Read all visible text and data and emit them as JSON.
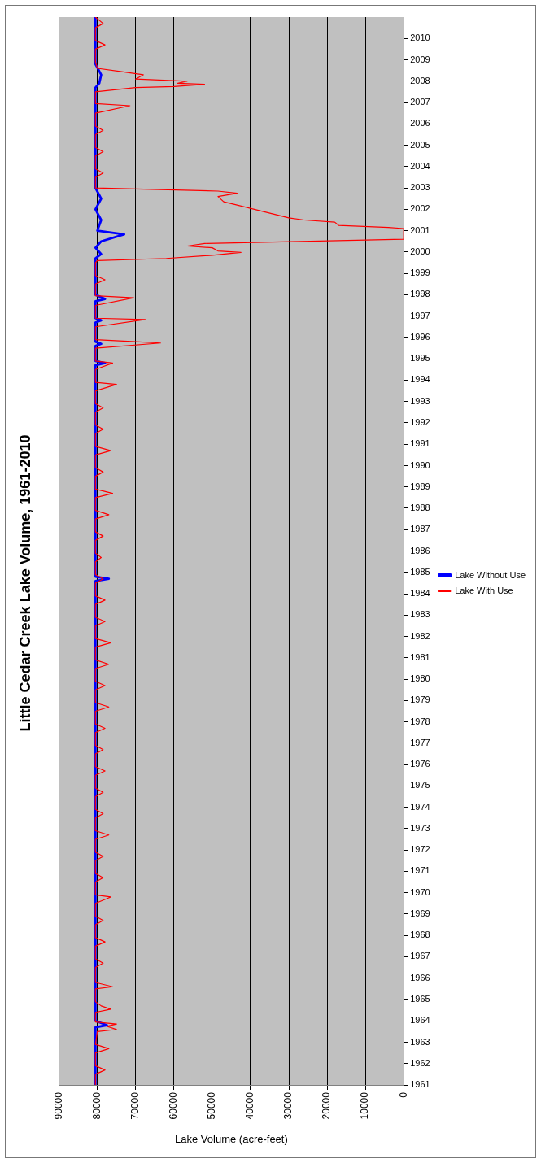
{
  "chart_data": {
    "type": "line",
    "title": "Little Cedar Creek Lake Volume, 1961-2010",
    "xlabel": "Lake Volume (acre-feet)",
    "xlim": [
      90000,
      0
    ],
    "xticks": [
      90000,
      80000,
      70000,
      60000,
      50000,
      40000,
      30000,
      20000,
      10000,
      0
    ],
    "ylim": [
      1961,
      2011
    ],
    "yticks": [
      1961,
      1962,
      1963,
      1964,
      1965,
      1966,
      1967,
      1968,
      1969,
      1970,
      1971,
      1972,
      1973,
      1974,
      1975,
      1976,
      1977,
      1978,
      1979,
      1980,
      1981,
      1982,
      1983,
      1984,
      1985,
      1986,
      1987,
      1988,
      1989,
      1990,
      1991,
      1992,
      1993,
      1994,
      1995,
      1996,
      1997,
      1998,
      1999,
      2000,
      2001,
      2002,
      2003,
      2004,
      2005,
      2006,
      2007,
      2008,
      2009,
      2010
    ],
    "grid": "x",
    "legend": "right",
    "marker": "none",
    "line_style": "solid",
    "series": [
      {
        "name": "Lake Without Use",
        "color": "#0000ff",
        "values": [
          1961,
          1963.7,
          1963.8,
          1964,
          1984.6,
          1984.7,
          1984.8,
          1994.7,
          1994.8,
          1994.9,
          1995.6,
          1995.7,
          1995.8,
          1996.7,
          1996.8,
          1996.9,
          1997.7,
          1997.8,
          1998,
          1999.7,
          1999.9,
          2000.2,
          2000.5,
          2000.83,
          2001,
          2001.5,
          2002,
          2002.5,
          2003,
          2007.7,
          2007.9,
          2008.3,
          2008.8,
          2011
        ],
        "x": [
          80500,
          80500,
          77500,
          80500,
          80500,
          77000,
          80500,
          80500,
          78000,
          80500,
          80500,
          79000,
          80500,
          80500,
          79000,
          80500,
          80500,
          78000,
          80500,
          80500,
          79000,
          80500,
          79000,
          73000,
          80000,
          79000,
          80500,
          79000,
          80500,
          80500,
          79500,
          79000,
          80500,
          80500
        ]
      },
      {
        "name": "Lake With Use",
        "color": "#ff0000",
        "values": [
          1961,
          1961.5,
          1961.7,
          1961.9,
          1962.5,
          1962.7,
          1962.9,
          1963.5,
          1963.6,
          1963.75,
          1963.85,
          1963.95,
          1964.4,
          1964.55,
          1964.7,
          1964.9,
          1965.5,
          1965.6,
          1965.8,
          1966.5,
          1966.7,
          1966.9,
          1967.5,
          1967.7,
          1967.9,
          1968.5,
          1968.7,
          1968.9,
          1969.5,
          1969.8,
          1969.9,
          1970.5,
          1970.7,
          1970.9,
          1971.5,
          1971.7,
          1971.9,
          1972.5,
          1972.7,
          1972.9,
          1973.5,
          1973.7,
          1973.9,
          1974.5,
          1974.7,
          1974.9,
          1975.5,
          1975.7,
          1975.9,
          1976.5,
          1976.7,
          1976.9,
          1977.5,
          1977.7,
          1977.9,
          1978.5,
          1978.7,
          1978.9,
          1979.5,
          1979.7,
          1979.9,
          1980.5,
          1980.7,
          1980.9,
          1981.5,
          1981.7,
          1981.9,
          1982.5,
          1982.7,
          1982.9,
          1983.5,
          1983.7,
          1983.9,
          1984.5,
          1984.7,
          1984.9,
          1985.5,
          1985.7,
          1985.9,
          1986.5,
          1986.7,
          1986.9,
          1987.5,
          1987.7,
          1987.9,
          1988.5,
          1988.7,
          1988.9,
          1989.5,
          1989.7,
          1989.9,
          1990.5,
          1990.7,
          1990.9,
          1991.5,
          1991.7,
          1991.9,
          1992.5,
          1992.7,
          1992.9,
          1993.5,
          1993.8,
          1993.9,
          1994.5,
          1994.8,
          1994.9,
          1995.5,
          1995.74,
          1995.8,
          1995.9,
          1996.5,
          1996.84,
          1996.9,
          1997.5,
          1997.86,
          1997.95,
          1998.5,
          1998.7,
          1998.9,
          1999.5,
          1999.6,
          1999.7,
          1999.85,
          1999.98,
          2000.05,
          2000.2,
          2000.28,
          2000.4,
          2000.6,
          2001.1,
          2001.15,
          2001.25,
          2001.4,
          2001.5,
          2001.6,
          2001.8,
          2002,
          2002.2,
          2002.35,
          2002.6,
          2002.75,
          2002.85,
          2003,
          2003.5,
          2003.7,
          2003.9,
          2004.5,
          2004.7,
          2004.9,
          2005.5,
          2005.7,
          2005.9,
          2006.5,
          2006.85,
          2006.95,
          2007.5,
          2007.7,
          2007.75,
          2007.85,
          2007.9,
          2008,
          2008.1,
          2008.3,
          2008.45,
          2008.6,
          2008.9,
          2009.5,
          2009.7,
          2009.9,
          2010.5,
          2010.7,
          2011
        ],
        "x": [
          80500,
          80500,
          78000,
          80500,
          80500,
          77000,
          80500,
          80000,
          75000,
          77500,
          75000,
          80500,
          80500,
          76500,
          79000,
          80500,
          80500,
          76000,
          80500,
          80500,
          78500,
          80500,
          80500,
          78000,
          80500,
          80500,
          78500,
          80500,
          80500,
          76500,
          80500,
          80500,
          78500,
          80500,
          80500,
          78500,
          80500,
          80500,
          77000,
          80500,
          80500,
          78500,
          80500,
          80500,
          78500,
          80500,
          80500,
          78000,
          80500,
          80500,
          78500,
          80500,
          80500,
          78000,
          80500,
          80500,
          77000,
          80500,
          80500,
          78000,
          80500,
          80500,
          77000,
          80500,
          80500,
          76500,
          80500,
          80500,
          78000,
          80500,
          80500,
          78000,
          80500,
          80500,
          78500,
          80500,
          80500,
          79000,
          80500,
          80500,
          78500,
          80500,
          80500,
          77000,
          80500,
          80500,
          76000,
          80500,
          80500,
          78500,
          80500,
          80500,
          76500,
          80500,
          80500,
          78500,
          80500,
          80500,
          78500,
          80500,
          80500,
          75000,
          80500,
          80500,
          76000,
          80500,
          80500,
          63500,
          70000,
          80500,
          80500,
          67500,
          80500,
          80500,
          70500,
          80500,
          80500,
          78000,
          80500,
          80500,
          80000,
          62000,
          50000,
          42500,
          48500,
          50000,
          56500,
          52000,
          0,
          0,
          4000,
          17000,
          18000,
          26000,
          30000,
          34500,
          39000,
          43500,
          47000,
          48500,
          43500,
          48500,
          80500,
          80500,
          78500,
          80500,
          80500,
          78500,
          80500,
          80500,
          78500,
          80500,
          80500,
          71500,
          80500,
          80500,
          70000,
          60000,
          52000,
          59000,
          56500,
          70000,
          68000,
          74000,
          80000,
          80500,
          80500,
          78000,
          80500,
          80500,
          78500,
          80500
        ]
      }
    ]
  }
}
